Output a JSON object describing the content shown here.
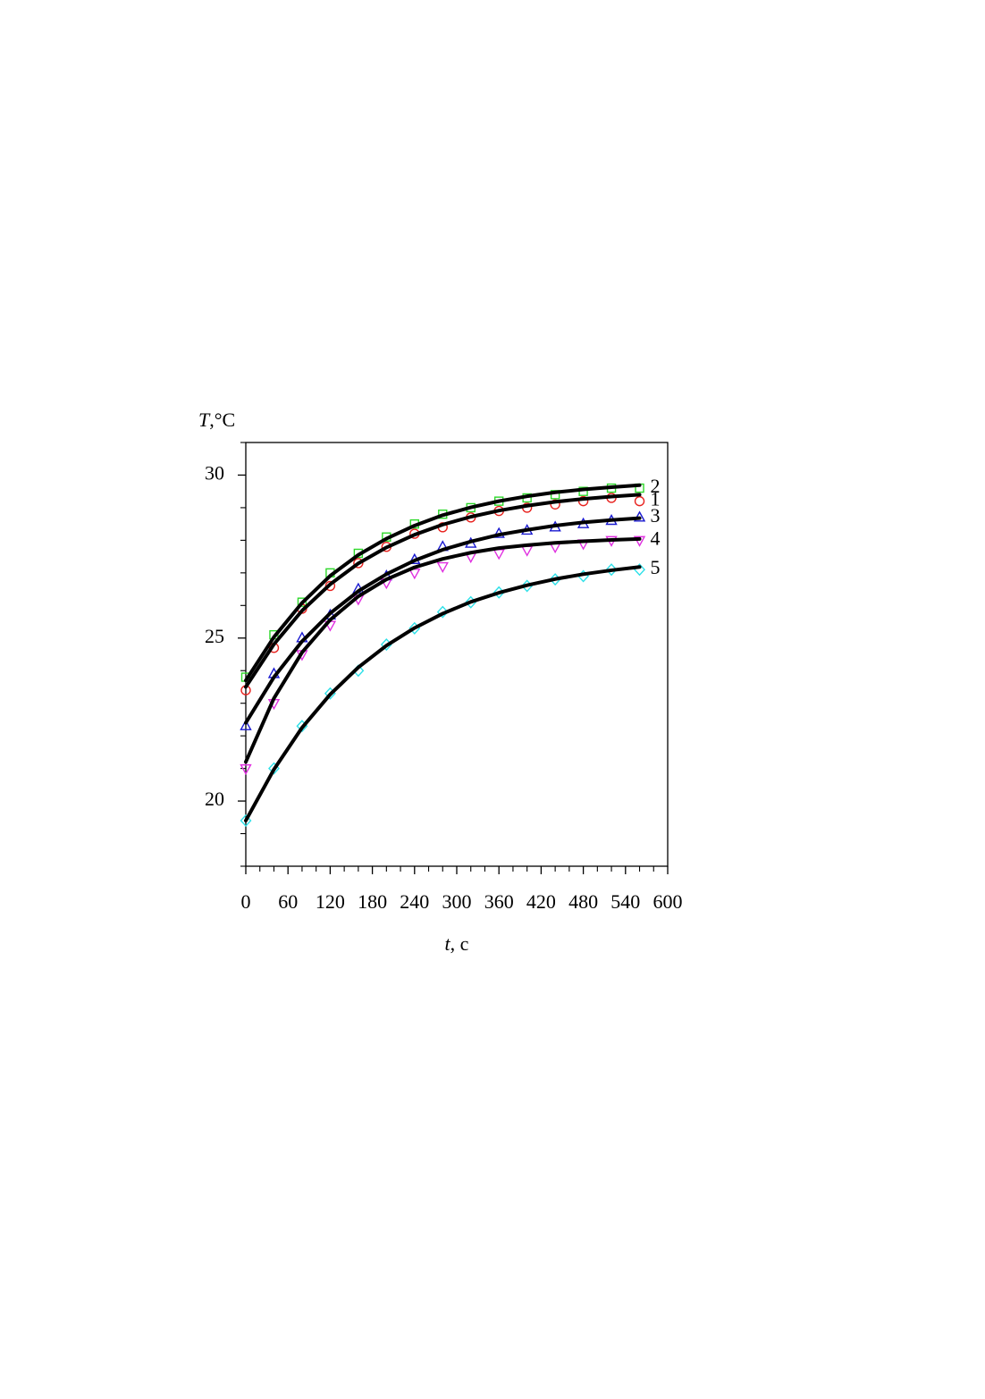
{
  "chart_data": {
    "type": "line",
    "y_label": "T,°C",
    "x_label": "t, c",
    "x": [
      0,
      40,
      80,
      120,
      160,
      200,
      240,
      280,
      320,
      360,
      400,
      440,
      480,
      520,
      560
    ],
    "series": [
      {
        "name": "1",
        "color": "#e8221e",
        "marker": "circle",
        "values": [
          23.4,
          24.7,
          25.9,
          26.6,
          27.3,
          27.8,
          28.2,
          28.4,
          28.7,
          28.9,
          29.0,
          29.1,
          29.2,
          29.3,
          29.2
        ]
      },
      {
        "name": "2",
        "color": "#2ed82a",
        "marker": "square",
        "values": [
          23.8,
          25.1,
          26.1,
          27.0,
          27.6,
          28.1,
          28.5,
          28.8,
          29.0,
          29.2,
          29.3,
          29.4,
          29.5,
          29.6,
          29.6
        ]
      },
      {
        "name": "3",
        "color": "#1a1ad0",
        "marker": "triangle",
        "values": [
          22.3,
          23.9,
          25.0,
          25.7,
          26.5,
          26.9,
          27.4,
          27.8,
          27.9,
          28.2,
          28.3,
          28.4,
          28.5,
          28.6,
          28.7
        ]
      },
      {
        "name": "4",
        "color": "#e030e0",
        "marker": "triangle-down",
        "values": [
          21.0,
          23.0,
          24.5,
          25.4,
          26.2,
          26.7,
          27.0,
          27.2,
          27.5,
          27.6,
          27.7,
          27.8,
          27.9,
          28.0,
          28.0
        ]
      },
      {
        "name": "5",
        "color": "#2ee0e8",
        "marker": "diamond",
        "values": [
          19.4,
          21.0,
          22.3,
          23.3,
          24.0,
          24.8,
          25.3,
          25.8,
          26.1,
          26.4,
          26.6,
          26.8,
          26.9,
          27.1,
          27.1
        ]
      },
      {
        "color": "#000000",
        "values": [
          23.5,
          24.81,
          25.84,
          26.65,
          27.29,
          27.78,
          28.17,
          28.48,
          28.72,
          28.91,
          29.06,
          29.18,
          29.27,
          29.34,
          29.4
        ]
      },
      {
        "color": "#000000",
        "values": [
          23.7,
          25.03,
          26.08,
          26.91,
          27.55,
          28.05,
          28.45,
          28.77,
          29.01,
          29.2,
          29.35,
          29.47,
          29.56,
          29.63,
          29.69
        ]
      },
      {
        "color": "#000000",
        "values": [
          22.4,
          23.8,
          24.9,
          25.76,
          26.44,
          26.96,
          27.38,
          27.71,
          27.96,
          28.17,
          28.32,
          28.45,
          28.55,
          28.62,
          28.68
        ]
      },
      {
        "color": "#000000",
        "values": [
          21.2,
          23.15,
          24.56,
          25.56,
          26.28,
          26.8,
          27.17,
          27.43,
          27.62,
          27.76,
          27.85,
          27.92,
          27.97,
          28.01,
          28.04
        ]
      },
      {
        "color": "#000000",
        "values": [
          19.4,
          20.97,
          22.25,
          23.27,
          24.1,
          24.77,
          25.31,
          25.75,
          26.11,
          26.39,
          26.62,
          26.81,
          26.96,
          27.08,
          27.18
        ]
      }
    ],
    "xlim": [
      0,
      600
    ],
    "ylim": [
      18,
      31
    ],
    "xticks": [
      0,
      60,
      120,
      180,
      240,
      300,
      360,
      420,
      480,
      540,
      600
    ],
    "yticks": [
      20,
      25,
      30
    ],
    "xticks_minor": [
      20,
      40,
      80,
      100,
      140,
      160,
      200,
      220,
      260,
      280,
      320,
      340,
      380,
      400,
      440,
      460,
      500,
      520,
      560,
      580
    ],
    "yticks_minor": [
      18,
      19,
      21,
      22,
      23,
      24,
      26,
      27,
      28,
      29,
      31
    ]
  }
}
